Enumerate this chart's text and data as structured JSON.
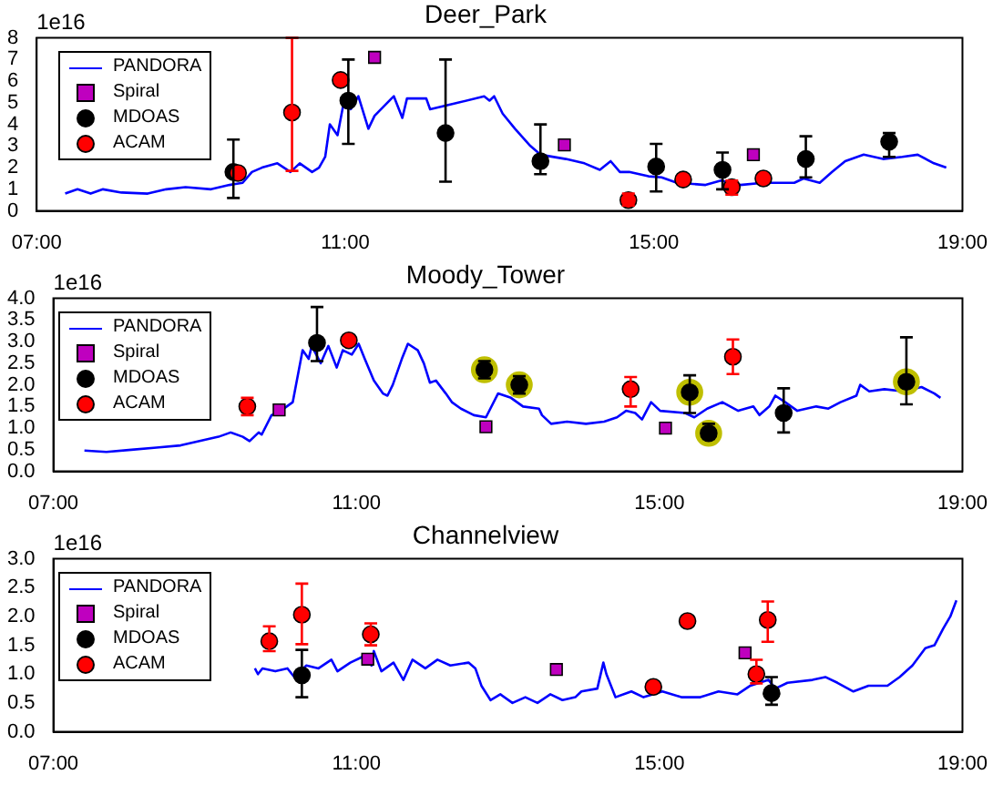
{
  "chart_data": [
    {
      "type": "line",
      "title": "Deer_Park",
      "annotations": [
        "1e16"
      ],
      "legend": "top left",
      "grid": false,
      "xlim": [
        7,
        19
      ],
      "xticks": [
        {
          "value": 7,
          "label": "07:00"
        },
        {
          "value": 11,
          "label": "11:00"
        },
        {
          "value": 15,
          "label": "15:00"
        },
        {
          "value": 19,
          "label": "19:00"
        }
      ],
      "ylim": [
        0,
        8
      ],
      "yticks": [
        0,
        1,
        2,
        3,
        4,
        5,
        6,
        7,
        8
      ],
      "series": [
        {
          "name": "PANDORA",
          "type": "line",
          "marker": "none",
          "color": "#0000ff",
          "x": [
            7.37,
            7.53,
            7.7,
            7.86,
            8.1,
            8.44,
            8.68,
            8.93,
            9.26,
            9.5,
            9.67,
            9.79,
            9.92,
            10.12,
            10.29,
            10.41,
            10.57,
            10.66,
            10.74,
            10.8,
            10.9,
            10.98,
            11.07,
            11.17,
            11.3,
            11.38,
            11.6,
            11.63,
            11.74,
            11.8,
            12.05,
            12.1,
            12.46,
            12.8,
            12.87,
            12.93,
            13.04,
            13.2,
            13.4,
            13.53,
            13.86,
            14.1,
            14.3,
            14.44,
            14.56,
            14.68,
            14.93,
            15.1,
            15.3,
            15.67,
            15.87,
            16.12,
            16.41,
            16.82,
            16.94,
            17.15,
            17.31,
            17.48,
            17.72,
            17.97,
            18.22,
            18.42,
            18.63,
            18.79
          ],
          "values": [
            0.8,
            1.0,
            0.8,
            1.0,
            0.85,
            0.8,
            1.0,
            1.1,
            1.0,
            1.2,
            1.3,
            1.8,
            2.0,
            2.2,
            1.8,
            2.2,
            1.8,
            2.0,
            2.5,
            4.0,
            3.5,
            5.0,
            4.7,
            5.3,
            3.8,
            4.4,
            5.2,
            5.3,
            4.3,
            5.2,
            5.2,
            4.7,
            5.0,
            5.3,
            5.1,
            5.3,
            4.5,
            3.8,
            3.0,
            2.6,
            2.4,
            2.2,
            1.9,
            2.3,
            1.8,
            1.8,
            1.6,
            1.55,
            1.3,
            1.2,
            1.4,
            1.2,
            1.3,
            1.3,
            1.5,
            1.3,
            1.8,
            2.3,
            2.6,
            2.4,
            2.5,
            2.6,
            2.2,
            2.0
          ]
        },
        {
          "name": "Spiral",
          "type": "scatter",
          "marker": "square",
          "color": "#bf00bf",
          "x": [
            11.38,
            13.84,
            16.29
          ],
          "values": [
            7.1,
            3.05,
            2.6
          ]
        },
        {
          "name": "MDOAS",
          "type": "scatter",
          "marker": "circle",
          "color": "#000000",
          "x": [
            9.55,
            11.04,
            12.3,
            13.53,
            15.03,
            15.89,
            16.97,
            18.05
          ],
          "values": [
            1.8,
            5.1,
            3.6,
            2.3,
            2.05,
            1.9,
            2.4,
            3.2
          ],
          "errors": [
            [
              0.6,
              3.3
            ],
            [
              3.1,
              7.0
            ],
            [
              1.35,
              7.0
            ],
            [
              1.7,
              4.0
            ],
            [
              0.9,
              3.1
            ],
            [
              1.0,
              2.7
            ],
            [
              1.55,
              3.45
            ],
            [
              2.5,
              3.6
            ]
          ]
        },
        {
          "name": "ACAM",
          "type": "scatter",
          "marker": "circle",
          "color": "#ff0000",
          "x": [
            9.61,
            10.31,
            10.94,
            14.67,
            15.38,
            16.01,
            16.42
          ],
          "values": [
            1.75,
            4.55,
            6.05,
            0.5,
            1.45,
            1.1,
            1.5
          ],
          "errors": [
            null,
            [
              1.85,
              8.0
            ],
            null,
            [
              0.25,
              0.8
            ],
            null,
            [
              0.75,
              1.4
            ],
            null
          ]
        }
      ]
    },
    {
      "type": "line",
      "title": "Moody_Tower",
      "annotations": [
        "1e16"
      ],
      "legend": "top left",
      "grid": false,
      "xlim": [
        7,
        19
      ],
      "xticks": [
        {
          "value": 7,
          "label": "07:00"
        },
        {
          "value": 11,
          "label": "11:00"
        },
        {
          "value": 15,
          "label": "15:00"
        },
        {
          "value": 19,
          "label": "19:00"
        }
      ],
      "ylim": [
        0,
        4
      ],
      "yticks": [
        {
          "value": 0,
          "label": "0.0"
        },
        0.5,
        {
          "value": 1,
          "label": "1.0"
        },
        1.5,
        {
          "value": 2,
          "label": "2.0"
        },
        2.5,
        {
          "value": 3,
          "label": "3.0"
        },
        3.5,
        {
          "value": 4,
          "label": "4.0"
        }
      ],
      "series": [
        {
          "name": "PANDORA",
          "type": "line",
          "marker": "none",
          "color": "#0000ff",
          "x": [
            7.41,
            7.7,
            8.03,
            8.36,
            8.68,
            8.93,
            9.18,
            9.34,
            9.5,
            9.59,
            9.71,
            9.75,
            9.88,
            10.0,
            10.16,
            10.29,
            10.37,
            10.41,
            10.53,
            10.63,
            10.74,
            10.82,
            10.94,
            11.03,
            11.11,
            11.23,
            11.35,
            11.41,
            11.48,
            11.6,
            11.68,
            11.81,
            11.89,
            11.97,
            12.05,
            12.18,
            12.26,
            12.38,
            12.55,
            12.71,
            12.87,
            13.04,
            13.2,
            13.41,
            13.45,
            13.57,
            13.78,
            14.03,
            14.27,
            14.44,
            14.56,
            14.68,
            14.77,
            14.89,
            15.01,
            15.34,
            15.46,
            15.63,
            15.83,
            16.04,
            16.24,
            16.32,
            16.45,
            16.53,
            16.66,
            16.82,
            17.07,
            17.23,
            17.39,
            17.6,
            17.65,
            17.77,
            17.97,
            18.22,
            18.46,
            18.63,
            18.71
          ],
          "values": [
            0.48,
            0.45,
            0.5,
            0.55,
            0.6,
            0.7,
            0.8,
            0.9,
            0.8,
            0.7,
            0.9,
            0.85,
            1.3,
            1.4,
            1.6,
            2.8,
            2.6,
            2.9,
            2.5,
            2.9,
            2.4,
            2.8,
            2.7,
            2.95,
            2.6,
            2.1,
            1.8,
            1.75,
            2.0,
            2.6,
            2.95,
            2.8,
            2.5,
            2.05,
            2.1,
            1.8,
            1.6,
            1.45,
            1.3,
            1.25,
            1.8,
            1.7,
            1.5,
            1.45,
            1.3,
            1.1,
            1.15,
            1.1,
            1.15,
            1.25,
            1.4,
            1.35,
            1.2,
            1.6,
            1.4,
            1.35,
            1.25,
            1.45,
            1.6,
            1.4,
            1.5,
            1.3,
            1.5,
            1.75,
            1.6,
            1.4,
            1.5,
            1.45,
            1.6,
            1.75,
            2.0,
            1.85,
            1.9,
            1.85,
            1.95,
            1.8,
            1.7
          ]
        },
        {
          "type": "scatter",
          "marker": "circle",
          "color": "#bfbf00",
          "x": [
            12.69,
            13.15,
            15.4,
            15.65,
            18.26
          ],
          "values": [
            2.35,
            2.0,
            1.83,
            0.88,
            2.07
          ]
        },
        {
          "name": "Spiral",
          "type": "scatter",
          "marker": "square",
          "color": "#bf00bf",
          "x": [
            9.98,
            12.71,
            15.08
          ],
          "values": [
            1.42,
            1.03,
            1.0
          ]
        },
        {
          "name": "MDOAS",
          "type": "scatter",
          "marker": "circle",
          "color": "#000000",
          "x": [
            10.48,
            12.69,
            13.15,
            15.4,
            15.65,
            16.64,
            18.26
          ],
          "values": [
            2.97,
            2.35,
            2.0,
            1.83,
            0.88,
            1.35,
            2.07
          ],
          "errors": [
            [
              2.55,
              3.8
            ],
            [
              2.15,
              2.55
            ],
            [
              1.8,
              2.2
            ],
            [
              1.35,
              2.22
            ],
            [
              0.75,
              1.1
            ],
            [
              0.9,
              1.92
            ],
            [
              1.55,
              3.1
            ]
          ]
        },
        {
          "name": "ACAM",
          "type": "scatter",
          "marker": "circle",
          "color": "#ff0000",
          "x": [
            9.56,
            10.9,
            14.62,
            15.97
          ],
          "values": [
            1.5,
            3.03,
            1.9,
            2.65
          ],
          "errors": [
            [
              1.3,
              1.7
            ],
            null,
            [
              1.5,
              2.18
            ],
            [
              2.25,
              3.05
            ]
          ]
        }
      ]
    },
    {
      "type": "line",
      "title": "Channelview",
      "annotations": [
        "1e16"
      ],
      "legend": "top left",
      "grid": false,
      "xlim": [
        7,
        19
      ],
      "xticks": [
        {
          "value": 7,
          "label": "07:00"
        },
        {
          "value": 11,
          "label": "11:00"
        },
        {
          "value": 15,
          "label": "15:00"
        },
        {
          "value": 19,
          "label": "19:00"
        }
      ],
      "ylim": [
        0,
        3
      ],
      "yticks": [
        {
          "value": 0,
          "label": "0.0"
        },
        0.5,
        {
          "value": 1,
          "label": "1.0"
        },
        1.5,
        {
          "value": 2,
          "label": "2.0"
        },
        2.5,
        {
          "value": 3,
          "label": "3.0"
        }
      ],
      "series": [
        {
          "name": "PANDORA",
          "type": "line",
          "marker": "none",
          "color": "#0000ff",
          "x": [
            9.66,
            9.7,
            9.76,
            9.93,
            10.09,
            10.18,
            10.34,
            10.5,
            10.67,
            10.75,
            10.92,
            11.08,
            11.2,
            11.23,
            11.33,
            11.49,
            11.62,
            11.74,
            11.91,
            12.07,
            12.24,
            12.48,
            12.57,
            12.65,
            12.77,
            12.9,
            13.06,
            13.23,
            13.39,
            13.56,
            13.72,
            13.89,
            13.97,
            14.18,
            14.26,
            14.3,
            14.42,
            14.63,
            14.79,
            15.04,
            15.29,
            15.54,
            15.78,
            16.03,
            16.2,
            16.44,
            16.53,
            16.69,
            17.02,
            17.19,
            17.35,
            17.56,
            17.76,
            18.01,
            18.17,
            18.34,
            18.51,
            18.63,
            18.75,
            18.84,
            18.92
          ],
          "values": [
            1.1,
            1.0,
            1.1,
            1.05,
            1.1,
            0.95,
            1.15,
            1.1,
            1.25,
            1.05,
            1.2,
            1.3,
            1.15,
            1.4,
            1.05,
            1.2,
            0.9,
            1.25,
            1.1,
            1.25,
            1.15,
            1.2,
            1.1,
            0.8,
            0.55,
            0.65,
            0.5,
            0.6,
            0.5,
            0.65,
            0.55,
            0.6,
            0.7,
            0.75,
            1.2,
            1.0,
            0.6,
            0.7,
            0.6,
            0.7,
            0.6,
            0.6,
            0.7,
            0.65,
            0.8,
            0.9,
            0.75,
            0.85,
            0.9,
            0.95,
            0.85,
            0.7,
            0.8,
            0.8,
            0.95,
            1.15,
            1.45,
            1.5,
            1.8,
            2.0,
            2.28
          ]
        },
        {
          "name": "Spiral",
          "type": "scatter",
          "marker": "square",
          "color": "#bf00bf",
          "x": [
            11.15,
            13.64,
            16.13
          ],
          "values": [
            1.26,
            1.08,
            1.37
          ]
        },
        {
          "name": "MDOAS",
          "type": "scatter",
          "marker": "circle",
          "color": "#000000",
          "x": [
            10.28,
            16.48
          ],
          "values": [
            0.98,
            0.67
          ],
          "errors": [
            [
              0.6,
              1.42
            ],
            [
              0.47,
              0.95
            ]
          ]
        },
        {
          "name": "ACAM",
          "type": "scatter",
          "marker": "circle",
          "color": "#ff0000",
          "x": [
            9.85,
            10.28,
            11.19,
            14.92,
            15.37,
            16.28,
            16.43
          ],
          "values": [
            1.57,
            2.03,
            1.69,
            0.78,
            1.92,
            1.0,
            1.94
          ],
          "errors": [
            [
              1.4,
              1.83
            ],
            [
              1.52,
              2.57
            ],
            [
              1.5,
              1.88
            ],
            null,
            null,
            [
              0.84,
              1.25
            ],
            [
              1.56,
              2.26
            ]
          ]
        }
      ]
    }
  ]
}
